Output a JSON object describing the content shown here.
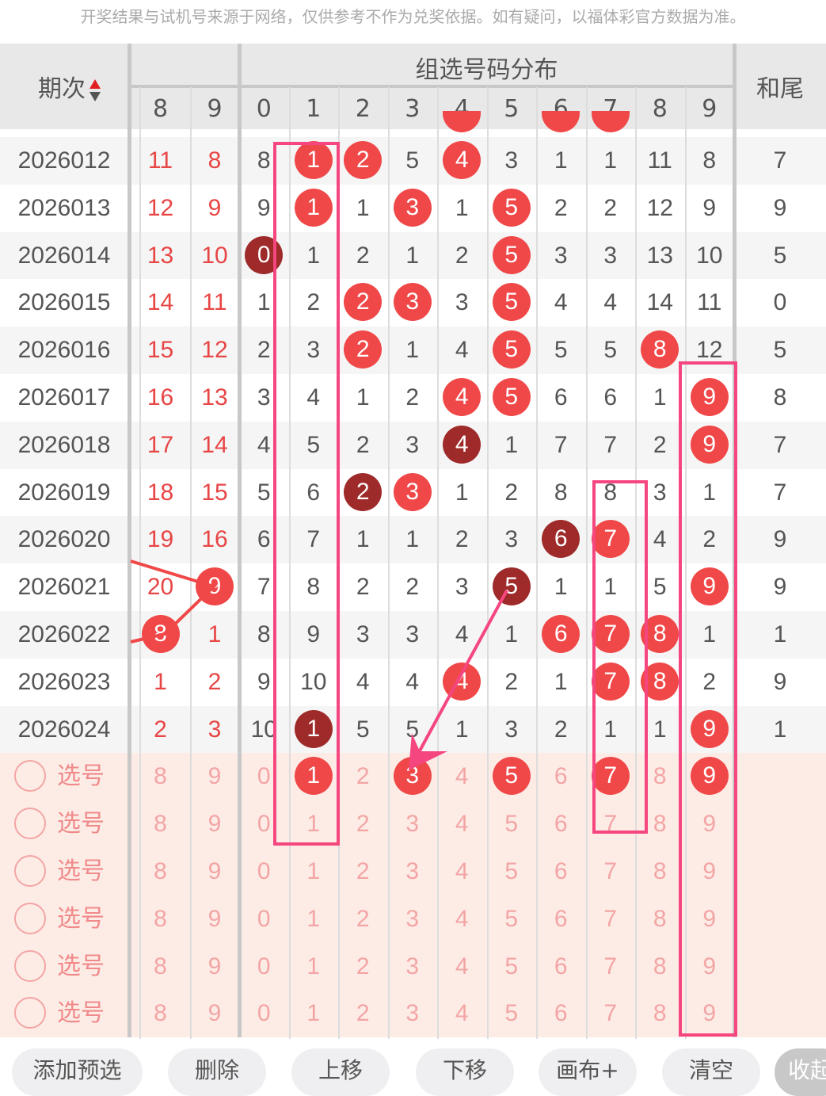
{
  "notice": "开奖结果与试机号来源于网络，仅供参考不作为兑奖依据。如有疑问，以福体彩官方数据为准。",
  "header": {
    "period": "期次",
    "group_title": "组选号码分布",
    "sum_tail": "和尾",
    "lead_cols": [
      "8",
      "9"
    ],
    "digit_cols": [
      "0",
      "1",
      "2",
      "3",
      "4",
      "5",
      "6",
      "7",
      "8",
      "9"
    ],
    "sort_icon": "sort-up-down-icon"
  },
  "colors": {
    "ball": "#f04848",
    "dark_ball": "#9e2a2a",
    "overlay": "#f5467f",
    "select_bg": "#fdece6"
  },
  "rows": [
    {
      "period": "2026012",
      "cells": [
        [
          "11",
          ""
        ],
        [
          "8",
          ""
        ],
        [
          "8",
          ""
        ],
        [
          "1",
          "b"
        ],
        [
          "2",
          "b"
        ],
        [
          "5",
          ""
        ],
        [
          "4",
          "b"
        ],
        [
          "3",
          ""
        ],
        [
          "1",
          ""
        ],
        [
          "1",
          ""
        ],
        [
          "11",
          ""
        ],
        [
          "8",
          ""
        ]
      ],
      "tail": "7"
    },
    {
      "period": "2026013",
      "cells": [
        [
          "12",
          ""
        ],
        [
          "9",
          ""
        ],
        [
          "9",
          ""
        ],
        [
          "1",
          "b"
        ],
        [
          "1",
          ""
        ],
        [
          "3",
          "b"
        ],
        [
          "1",
          ""
        ],
        [
          "5",
          "b"
        ],
        [
          "2",
          ""
        ],
        [
          "2",
          ""
        ],
        [
          "12",
          ""
        ],
        [
          "9",
          ""
        ]
      ],
      "tail": "9"
    },
    {
      "period": "2026014",
      "cells": [
        [
          "13",
          ""
        ],
        [
          "10",
          ""
        ],
        [
          "0",
          "d"
        ],
        [
          "1",
          ""
        ],
        [
          "2",
          ""
        ],
        [
          "1",
          ""
        ],
        [
          "2",
          ""
        ],
        [
          "5",
          "b"
        ],
        [
          "3",
          ""
        ],
        [
          "3",
          ""
        ],
        [
          "13",
          ""
        ],
        [
          "10",
          ""
        ]
      ],
      "tail": "5"
    },
    {
      "period": "2026015",
      "cells": [
        [
          "14",
          ""
        ],
        [
          "11",
          ""
        ],
        [
          "1",
          ""
        ],
        [
          "2",
          ""
        ],
        [
          "2",
          "b"
        ],
        [
          "3",
          "b"
        ],
        [
          "3",
          ""
        ],
        [
          "5",
          "b"
        ],
        [
          "4",
          ""
        ],
        [
          "4",
          ""
        ],
        [
          "14",
          ""
        ],
        [
          "11",
          ""
        ]
      ],
      "tail": "0"
    },
    {
      "period": "2026016",
      "cells": [
        [
          "15",
          ""
        ],
        [
          "12",
          ""
        ],
        [
          "2",
          ""
        ],
        [
          "3",
          ""
        ],
        [
          "2",
          "b"
        ],
        [
          "1",
          ""
        ],
        [
          "4",
          ""
        ],
        [
          "5",
          "b"
        ],
        [
          "5",
          ""
        ],
        [
          "5",
          ""
        ],
        [
          "8",
          "b"
        ],
        [
          "12",
          ""
        ]
      ],
      "tail": "5"
    },
    {
      "period": "2026017",
      "cells": [
        [
          "16",
          ""
        ],
        [
          "13",
          ""
        ],
        [
          "3",
          ""
        ],
        [
          "4",
          ""
        ],
        [
          "1",
          ""
        ],
        [
          "2",
          ""
        ],
        [
          "4",
          "b"
        ],
        [
          "5",
          "b"
        ],
        [
          "6",
          ""
        ],
        [
          "6",
          ""
        ],
        [
          "1",
          ""
        ],
        [
          "9",
          "b"
        ]
      ],
      "tail": "8"
    },
    {
      "period": "2026018",
      "cells": [
        [
          "17",
          ""
        ],
        [
          "14",
          ""
        ],
        [
          "4",
          ""
        ],
        [
          "5",
          ""
        ],
        [
          "2",
          ""
        ],
        [
          "3",
          ""
        ],
        [
          "4",
          "d"
        ],
        [
          "1",
          ""
        ],
        [
          "7",
          ""
        ],
        [
          "7",
          ""
        ],
        [
          "2",
          ""
        ],
        [
          "9",
          "b"
        ]
      ],
      "tail": "7"
    },
    {
      "period": "2026019",
      "cells": [
        [
          "18",
          ""
        ],
        [
          "15",
          ""
        ],
        [
          "5",
          ""
        ],
        [
          "6",
          ""
        ],
        [
          "2",
          "d"
        ],
        [
          "3",
          "b"
        ],
        [
          "1",
          ""
        ],
        [
          "2",
          ""
        ],
        [
          "8",
          ""
        ],
        [
          "8",
          ""
        ],
        [
          "3",
          ""
        ],
        [
          "1",
          ""
        ]
      ],
      "tail": "7"
    },
    {
      "period": "2026020",
      "cells": [
        [
          "19",
          ""
        ],
        [
          "16",
          ""
        ],
        [
          "6",
          ""
        ],
        [
          "7",
          ""
        ],
        [
          "1",
          ""
        ],
        [
          "1",
          ""
        ],
        [
          "2",
          ""
        ],
        [
          "3",
          ""
        ],
        [
          "6",
          "d"
        ],
        [
          "7",
          "b"
        ],
        [
          "4",
          ""
        ],
        [
          "2",
          ""
        ]
      ],
      "tail": "9"
    },
    {
      "period": "2026021",
      "cells": [
        [
          "20",
          ""
        ],
        [
          "9",
          "b"
        ],
        [
          "7",
          ""
        ],
        [
          "8",
          ""
        ],
        [
          "2",
          ""
        ],
        [
          "2",
          ""
        ],
        [
          "3",
          ""
        ],
        [
          "5",
          "d"
        ],
        [
          "1",
          ""
        ],
        [
          "1",
          ""
        ],
        [
          "5",
          ""
        ],
        [
          "9",
          "b"
        ]
      ],
      "tail": "9"
    },
    {
      "period": "2026022",
      "cells": [
        [
          "8",
          "b"
        ],
        [
          "1",
          ""
        ],
        [
          "8",
          ""
        ],
        [
          "9",
          ""
        ],
        [
          "3",
          ""
        ],
        [
          "3",
          ""
        ],
        [
          "4",
          ""
        ],
        [
          "1",
          ""
        ],
        [
          "6",
          "b"
        ],
        [
          "7",
          "b"
        ],
        [
          "8",
          "b"
        ],
        [
          "1",
          ""
        ]
      ],
      "tail": "1"
    },
    {
      "period": "2026023",
      "cells": [
        [
          "1",
          ""
        ],
        [
          "2",
          ""
        ],
        [
          "9",
          ""
        ],
        [
          "10",
          ""
        ],
        [
          "4",
          ""
        ],
        [
          "4",
          ""
        ],
        [
          "4",
          "b"
        ],
        [
          "2",
          ""
        ],
        [
          "1",
          ""
        ],
        [
          "7",
          "b"
        ],
        [
          "8",
          "b"
        ],
        [
          "2",
          ""
        ]
      ],
      "tail": "9"
    },
    {
      "period": "2026024",
      "cells": [
        [
          "2",
          ""
        ],
        [
          "3",
          ""
        ],
        [
          "10",
          ""
        ],
        [
          "1",
          "d"
        ],
        [
          "5",
          ""
        ],
        [
          "5",
          ""
        ],
        [
          "1",
          ""
        ],
        [
          "3",
          ""
        ],
        [
          "2",
          ""
        ],
        [
          "1",
          ""
        ],
        [
          "1",
          ""
        ],
        [
          "9",
          "b"
        ]
      ],
      "tail": "1"
    }
  ],
  "select_rows": [
    {
      "label": "选号",
      "cells": [
        [
          "8",
          ""
        ],
        [
          "9",
          ""
        ],
        [
          "0",
          ""
        ],
        [
          "1",
          "b"
        ],
        [
          "2",
          ""
        ],
        [
          "3",
          "b"
        ],
        [
          "4",
          ""
        ],
        [
          "5",
          "b"
        ],
        [
          "6",
          ""
        ],
        [
          "7",
          "b"
        ],
        [
          "8",
          ""
        ],
        [
          "9",
          "b"
        ]
      ]
    },
    {
      "label": "选号",
      "cells": [
        [
          "8",
          ""
        ],
        [
          "9",
          ""
        ],
        [
          "0",
          ""
        ],
        [
          "1",
          ""
        ],
        [
          "2",
          ""
        ],
        [
          "3",
          ""
        ],
        [
          "4",
          ""
        ],
        [
          "5",
          ""
        ],
        [
          "6",
          ""
        ],
        [
          "7",
          ""
        ],
        [
          "8",
          ""
        ],
        [
          "9",
          ""
        ]
      ]
    },
    {
      "label": "选号",
      "cells": [
        [
          "8",
          ""
        ],
        [
          "9",
          ""
        ],
        [
          "0",
          ""
        ],
        [
          "1",
          ""
        ],
        [
          "2",
          ""
        ],
        [
          "3",
          ""
        ],
        [
          "4",
          ""
        ],
        [
          "5",
          ""
        ],
        [
          "6",
          ""
        ],
        [
          "7",
          ""
        ],
        [
          "8",
          ""
        ],
        [
          "9",
          ""
        ]
      ]
    },
    {
      "label": "选号",
      "cells": [
        [
          "8",
          ""
        ],
        [
          "9",
          ""
        ],
        [
          "0",
          ""
        ],
        [
          "1",
          ""
        ],
        [
          "2",
          ""
        ],
        [
          "3",
          ""
        ],
        [
          "4",
          ""
        ],
        [
          "5",
          ""
        ],
        [
          "6",
          ""
        ],
        [
          "7",
          ""
        ],
        [
          "8",
          ""
        ],
        [
          "9",
          ""
        ]
      ]
    },
    {
      "label": "选号",
      "cells": [
        [
          "8",
          ""
        ],
        [
          "9",
          ""
        ],
        [
          "0",
          ""
        ],
        [
          "1",
          ""
        ],
        [
          "2",
          ""
        ],
        [
          "3",
          ""
        ],
        [
          "4",
          ""
        ],
        [
          "5",
          ""
        ],
        [
          "6",
          ""
        ],
        [
          "7",
          ""
        ],
        [
          "8",
          ""
        ],
        [
          "9",
          ""
        ]
      ]
    },
    {
      "label": "选号",
      "cells": [
        [
          "8",
          ""
        ],
        [
          "9",
          ""
        ],
        [
          "0",
          ""
        ],
        [
          "1",
          ""
        ],
        [
          "2",
          ""
        ],
        [
          "3",
          ""
        ],
        [
          "4",
          ""
        ],
        [
          "5",
          ""
        ],
        [
          "6",
          ""
        ],
        [
          "7",
          ""
        ],
        [
          "8",
          ""
        ],
        [
          "9",
          ""
        ]
      ]
    }
  ],
  "buttons": [
    "添加预选",
    "删除",
    "上移",
    "下移",
    "画布+",
    "清空",
    "收起"
  ]
}
